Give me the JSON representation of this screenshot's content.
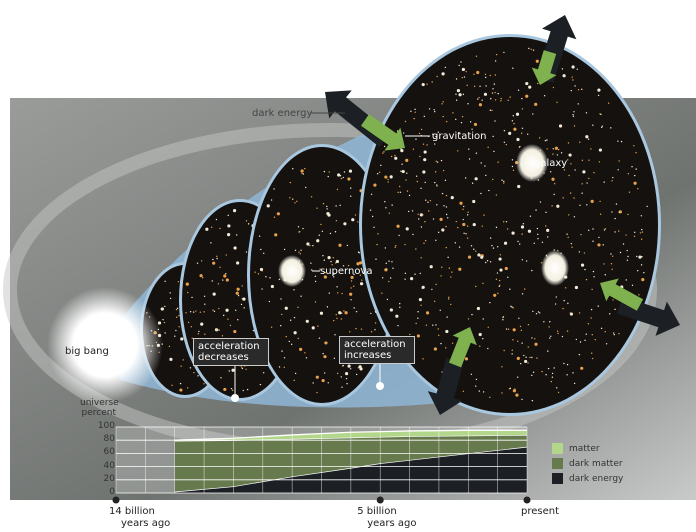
{
  "labels": {
    "dark_energy": "dark energy",
    "gravitation": "gravitation",
    "galaxy": "galaxy",
    "supernova": "supernova",
    "big_bang": "big bang",
    "acceleration_decreases": "acceleration decreases",
    "acceleration_increases": "acceleration increases"
  },
  "colors": {
    "background_panel": "#8a8d8a",
    "dark_energy": "#1c1f24",
    "dark_matter": "#667a4e",
    "matter": "#b2d68a",
    "gravitation_arrow": "#7fb24e",
    "funnel": "#8fb6d6"
  },
  "chart_data": {
    "type": "area",
    "stacked": true,
    "ylabel": "universe percent",
    "ylim": [
      0,
      100
    ],
    "yticks": [
      "100",
      "80",
      "60",
      "40",
      "20",
      "0"
    ],
    "x_unit": "billion years ago",
    "xlim": [
      14,
      0
    ],
    "xtick_labels": [
      {
        "value": 14,
        "line1": "14  billion",
        "line2": "years ago"
      },
      {
        "value": 5,
        "line1": "5 billion",
        "line2": "years ago"
      },
      {
        "value": 0,
        "line1": "present",
        "line2": ""
      }
    ],
    "x": [
      12,
      10,
      8,
      6,
      5,
      4,
      2,
      0
    ],
    "series": [
      {
        "name": "dark energy",
        "values": [
          2,
          10,
          25,
          38,
          45,
          50,
          60,
          70
        ]
      },
      {
        "name": "dark matter",
        "values": [
          77,
          70,
          57,
          46,
          40,
          36,
          27,
          18
        ]
      },
      {
        "name": "matter",
        "values": [
          1,
          3,
          6,
          8,
          8,
          8,
          8,
          7
        ]
      }
    ],
    "legend": [
      "matter",
      "dark matter",
      "dark energy"
    ],
    "legend_position": "right",
    "grid": true
  }
}
